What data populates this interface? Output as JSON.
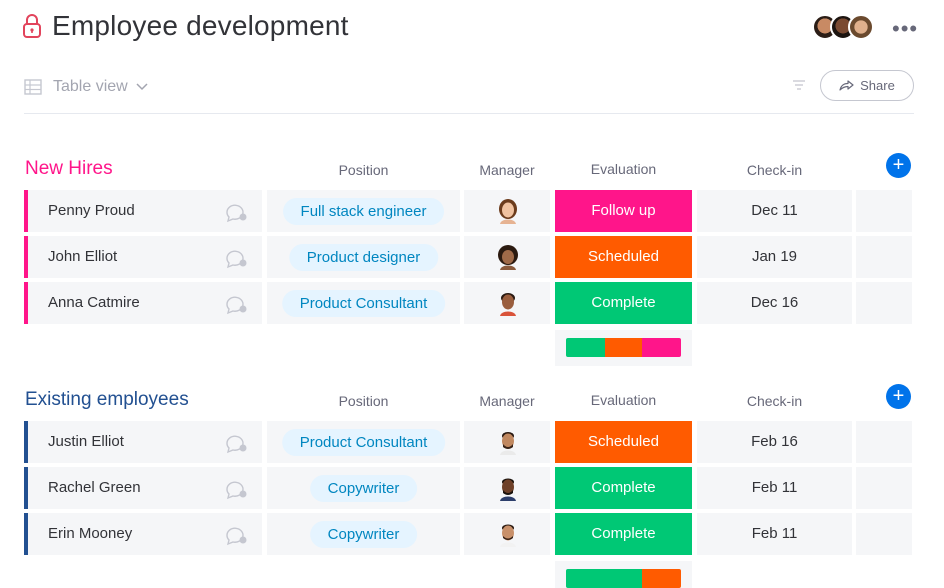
{
  "board": {
    "title": "Employee development"
  },
  "toolbar": {
    "view_label": "Table view",
    "share_label": "Share"
  },
  "colors": {
    "accent": "#0073ea",
    "follow_up": "#ff158a",
    "scheduled": "#ff5b00",
    "complete": "#00c875",
    "new_hires": "#ff158a",
    "existing": "#225091"
  },
  "columns": {
    "position": "Position",
    "manager": "Manager",
    "evaluation": "Evaluation",
    "checkin": "Check-in"
  },
  "groups": [
    {
      "title": "New Hires",
      "rows": [
        {
          "name": "Penny Proud",
          "position": "Full stack engineer",
          "evaluation": "Follow up",
          "checkin": "Dec 11"
        },
        {
          "name": "John Elliot",
          "position": "Product designer",
          "evaluation": "Scheduled",
          "checkin": "Jan 19"
        },
        {
          "name": "Anna Catmire",
          "position": "Product Consultant",
          "evaluation": "Complete",
          "checkin": "Dec 16"
        }
      ],
      "summary": [
        {
          "status": "Complete",
          "fraction": 0.34
        },
        {
          "status": "Scheduled",
          "fraction": 0.32
        },
        {
          "status": "Follow up",
          "fraction": 0.34
        }
      ]
    },
    {
      "title": "Existing employees",
      "rows": [
        {
          "name": "Justin Elliot",
          "position": "Product Consultant",
          "evaluation": "Scheduled",
          "checkin": "Feb 16"
        },
        {
          "name": "Rachel Green",
          "position": "Copywriter",
          "evaluation": "Complete",
          "checkin": "Feb 11"
        },
        {
          "name": "Erin Mooney",
          "position": "Copywriter",
          "evaluation": "Complete",
          "checkin": "Feb 11"
        }
      ],
      "summary": [
        {
          "status": "Complete",
          "fraction": 0.66
        },
        {
          "status": "Scheduled",
          "fraction": 0.34
        }
      ]
    }
  ]
}
